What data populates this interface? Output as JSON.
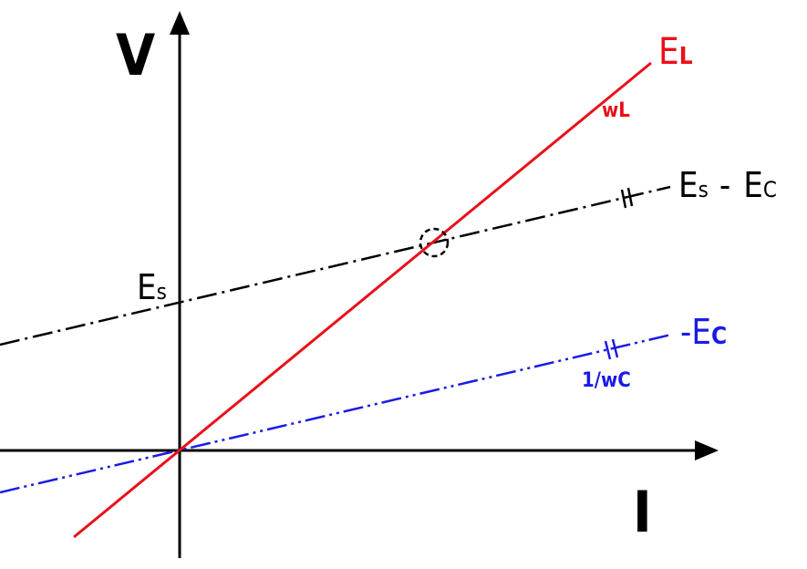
{
  "axes": {
    "y_label": "V",
    "x_label": "I"
  },
  "lines": {
    "el": {
      "name_main": "E",
      "name_sub": "L",
      "slope_label": "wL",
      "color": "#e8101a"
    },
    "es_minus_ec": {
      "name_a_main": "E",
      "name_a_sub": "s",
      "minus": "-",
      "name_b_main": "E",
      "name_b_sub": "C",
      "color": "#000000"
    },
    "neg_ec": {
      "name_main": "-E",
      "name_sub": "C",
      "slope_label": "1/wC",
      "color": "#1a1ae6"
    }
  },
  "intercept": {
    "main": "E",
    "sub": "s"
  },
  "colors": {
    "axis": "#000000"
  }
}
